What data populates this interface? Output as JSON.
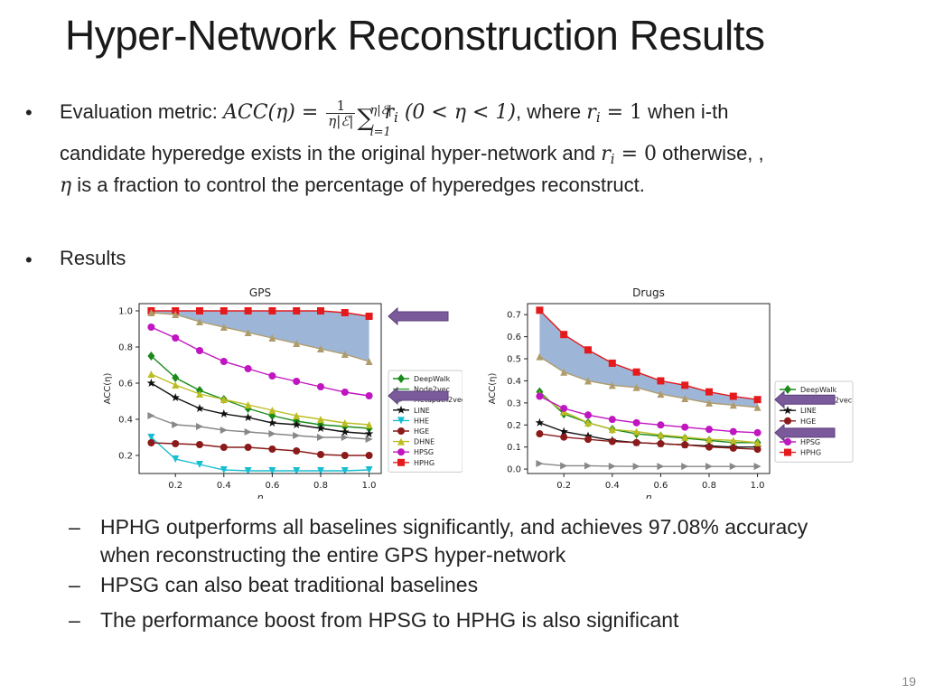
{
  "slide": {
    "title": "Hyper-Network Reconstruction Results",
    "bullet1": {
      "intro": "Evaluation metric: ",
      "acc": "ACC(η) = ",
      "frac_num": "1",
      "frac_den": "η|ℰ|",
      "sum_symbol": "∑",
      "sum_upper": "η|ℰ|",
      "sum_lower": "i=1",
      "term": "r",
      "term_sub": "i",
      "range": " (0 < η < 1)",
      "where": ", where ",
      "ri_eq1": "r",
      "ri_eq1_sub": "i",
      "ri_eq1_val": " = 1",
      "when": " when i-th",
      "line2_a": "candidate hyperedge exists in the original hyper-network and ",
      "ri_eq0": "r",
      "ri_eq0_sub": "i",
      "ri_eq0_val": " = 0",
      "line2_b": " otherwise, ,",
      "line3_eta": "η",
      "line3": " is a fraction to control the percentage of hyperedges reconstruct."
    },
    "bullet2": "Results",
    "bullet_glyph": "•",
    "dash_glyph": "–",
    "sub_points": [
      "HPHG outperforms all baselines significantly, and achieves 97.08% accuracy",
      "when reconstructing the entire GPS hyper-network",
      "HPSG can also beat traditional baselines",
      "The performance boost from HPSG to HPHG is also significant"
    ],
    "page_number": "19"
  },
  "chart_data": [
    {
      "type": "line",
      "title": "GPS",
      "xlabel": "η",
      "ylabel": "ACC(η)",
      "x": [
        0.1,
        0.2,
        0.3,
        0.4,
        0.5,
        0.6,
        0.7,
        0.8,
        0.9,
        1.0
      ],
      "xlim": [
        0.05,
        1.05
      ],
      "ylim": [
        0.1,
        1.04
      ],
      "xticks": [
        "0.2",
        "0.4",
        "0.6",
        "0.8",
        "1.0"
      ],
      "xtick_values": [
        0.2,
        0.4,
        0.6,
        0.8,
        1.0
      ],
      "yticks": [
        "0.2",
        "0.4",
        "0.6",
        "0.8",
        "1.0"
      ],
      "ytick_values": [
        0.2,
        0.4,
        0.6,
        0.8,
        1.0
      ],
      "legend_position": "right",
      "shaded_region": "between HPHG and DHNE",
      "shade_color": "#9db6d8",
      "arrow_color": "#7b5a9c",
      "arrows_at": [
        0.97,
        0.53
      ],
      "series": [
        {
          "name": "DeepWalk",
          "color": "#1a8a1a",
          "marker": "diamond",
          "values": [
            0.75,
            0.63,
            0.56,
            0.51,
            0.46,
            0.42,
            0.39,
            0.37,
            0.36,
            0.35
          ]
        },
        {
          "name": "Node2vec",
          "color": "#2ca02c",
          "marker": "none",
          "values": [
            0.74,
            0.62,
            0.55,
            0.5,
            0.45,
            0.41,
            0.38,
            0.36,
            0.35,
            0.34
          ]
        },
        {
          "name": "Metapath2vec",
          "color": "#888888",
          "marker": "tri-right",
          "values": [
            0.42,
            0.37,
            0.36,
            0.34,
            0.33,
            0.32,
            0.31,
            0.3,
            0.3,
            0.29
          ]
        },
        {
          "name": "LINE",
          "color": "#111111",
          "marker": "star",
          "values": [
            0.6,
            0.52,
            0.46,
            0.43,
            0.41,
            0.38,
            0.37,
            0.35,
            0.33,
            0.32
          ]
        },
        {
          "name": "HHE",
          "color": "#17becf",
          "marker": "tri-down",
          "values": [
            0.3,
            0.18,
            0.15,
            0.12,
            0.115,
            0.115,
            0.115,
            0.115,
            0.115,
            0.12
          ]
        },
        {
          "name": "HGE",
          "color": "#8b1a1a",
          "marker": "circle",
          "values": [
            0.27,
            0.265,
            0.26,
            0.245,
            0.245,
            0.235,
            0.225,
            0.205,
            0.2,
            0.2
          ]
        },
        {
          "name": "DHNE",
          "color": "#bcbd22",
          "marker": "tri-up",
          "values": [
            0.65,
            0.59,
            0.54,
            0.51,
            0.48,
            0.45,
            0.42,
            0.4,
            0.38,
            0.37
          ]
        },
        {
          "name": "HPSG",
          "color": "#c015c0",
          "marker": "circle",
          "values": [
            0.91,
            0.85,
            0.78,
            0.72,
            0.68,
            0.64,
            0.61,
            0.58,
            0.55,
            0.53
          ]
        },
        {
          "name": "HPHG",
          "color": "#e41a1c",
          "marker": "square",
          "values": [
            1.0,
            1.0,
            1.0,
            1.0,
            1.0,
            1.0,
            1.0,
            1.0,
            0.99,
            0.97
          ]
        },
        {
          "name": "",
          "color": "#b09c6a",
          "marker": "tri-up",
          "values": [
            0.99,
            0.98,
            0.94,
            0.91,
            0.88,
            0.85,
            0.82,
            0.79,
            0.76,
            0.72
          ]
        }
      ]
    },
    {
      "type": "line",
      "title": "Drugs",
      "xlabel": "η",
      "ylabel": "ACC(η)",
      "x": [
        0.1,
        0.2,
        0.3,
        0.4,
        0.5,
        0.6,
        0.7,
        0.8,
        0.9,
        1.0
      ],
      "xlim": [
        0.05,
        1.05
      ],
      "ylim": [
        -0.02,
        0.75
      ],
      "xticks": [
        "0.2",
        "0.4",
        "0.6",
        "0.8",
        "1.0"
      ],
      "xtick_values": [
        0.2,
        0.4,
        0.6,
        0.8,
        1.0
      ],
      "yticks": [
        "0.0",
        "0.1",
        "0.2",
        "0.3",
        "0.4",
        "0.5",
        "0.6",
        "0.7"
      ],
      "ytick_values": [
        0.0,
        0.1,
        0.2,
        0.3,
        0.4,
        0.5,
        0.6,
        0.7
      ],
      "legend_position": "right",
      "shaded_region": "between HPHG and DHNE",
      "shade_color": "#9db6d8",
      "arrow_color": "#7b5a9c",
      "arrows_at": [
        0.315,
        0.165
      ],
      "series": [
        {
          "name": "DeepWalk",
          "color": "#1a8a1a",
          "marker": "diamond",
          "values": [
            0.35,
            0.25,
            0.21,
            0.18,
            0.16,
            0.15,
            0.14,
            0.13,
            0.12,
            0.12
          ]
        },
        {
          "name": "Metapath2vec",
          "color": "#888888",
          "marker": "tri-right",
          "values": [
            0.025,
            0.015,
            0.015,
            0.013,
            0.012,
            0.012,
            0.012,
            0.012,
            0.012,
            0.012
          ]
        },
        {
          "name": "LINE",
          "color": "#111111",
          "marker": "star",
          "values": [
            0.21,
            0.17,
            0.15,
            0.13,
            0.12,
            0.115,
            0.11,
            0.105,
            0.1,
            0.1
          ]
        },
        {
          "name": "HGE",
          "color": "#8b1a1a",
          "marker": "circle",
          "values": [
            0.16,
            0.145,
            0.135,
            0.125,
            0.12,
            0.115,
            0.11,
            0.1,
            0.095,
            0.09
          ]
        },
        {
          "name": "DHNE",
          "color": "#bcbd22",
          "marker": "tri-up",
          "values": [
            0.34,
            0.26,
            0.21,
            0.18,
            0.17,
            0.155,
            0.145,
            0.135,
            0.13,
            0.12
          ]
        },
        {
          "name": "HPSG",
          "color": "#c015c0",
          "marker": "circle",
          "values": [
            0.33,
            0.275,
            0.245,
            0.225,
            0.21,
            0.2,
            0.19,
            0.18,
            0.17,
            0.165
          ]
        },
        {
          "name": "HPHG",
          "color": "#e41a1c",
          "marker": "square",
          "values": [
            0.72,
            0.61,
            0.54,
            0.48,
            0.44,
            0.4,
            0.38,
            0.35,
            0.33,
            0.315
          ]
        },
        {
          "name": "",
          "color": "#b09c6a",
          "marker": "tri-up",
          "values": [
            0.51,
            0.44,
            0.4,
            0.38,
            0.37,
            0.34,
            0.32,
            0.3,
            0.29,
            0.28
          ]
        }
      ]
    }
  ]
}
